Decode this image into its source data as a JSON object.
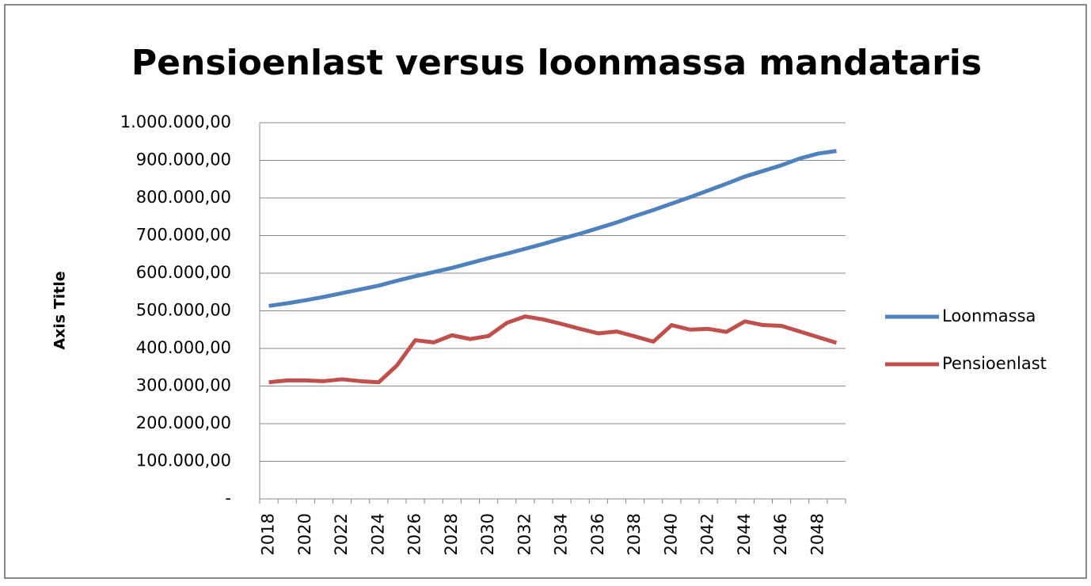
{
  "chart_data": {
    "type": "line",
    "title": "Pensioenlast  versus loonmassa mandataris",
    "y_label": "Axis Title",
    "categories": [
      "2018",
      null,
      "2020",
      null,
      "2022",
      null,
      "2024",
      null,
      "2026",
      null,
      "2028",
      null,
      "2030",
      null,
      "2032",
      null,
      "2034",
      null,
      "2036",
      null,
      "2038",
      null,
      "2040",
      null,
      "2042",
      null,
      "2044",
      null,
      "2046",
      null,
      "2048",
      null
    ],
    "series": [
      {
        "name": "Loonmassa",
        "color": "#4f81bd",
        "values": [
          513000,
          520000,
          528000,
          537000,
          547000,
          557000,
          567000,
          580000,
          592000,
          603000,
          614000,
          627000,
          640000,
          652000,
          665000,
          678000,
          692000,
          705000,
          720000,
          735000,
          752000,
          768000,
          785000,
          802000,
          820000,
          838000,
          857000,
          872000,
          887000,
          905000,
          918000,
          925000
        ]
      },
      {
        "name": "Pensioenlast",
        "color": "#c0504d",
        "values": [
          310000,
          315000,
          315000,
          313000,
          318000,
          313000,
          310000,
          355000,
          422000,
          416000,
          435000,
          425000,
          433000,
          468000,
          485000,
          477000,
          465000,
          452000,
          440000,
          445000,
          432000,
          418000,
          462000,
          450000,
          452000,
          444000,
          472000,
          462000,
          460000,
          445000,
          430000,
          415000
        ]
      }
    ],
    "ylim": [
      0,
      1000000
    ],
    "yticks": [
      {
        "value": 0,
        "label": "-"
      },
      {
        "value": 100000,
        "label": "100.000,00"
      },
      {
        "value": 200000,
        "label": "200.000,00"
      },
      {
        "value": 300000,
        "label": "300.000,00"
      },
      {
        "value": 400000,
        "label": "400.000,00"
      },
      {
        "value": 500000,
        "label": "500.000,00"
      },
      {
        "value": 600000,
        "label": "600.000,00"
      },
      {
        "value": 700000,
        "label": "700.000,00"
      },
      {
        "value": 800000,
        "label": "800.000,00"
      },
      {
        "value": 900000,
        "label": "900.000,00"
      },
      {
        "value": 1000000,
        "label": "1.000.000,00"
      }
    ],
    "grid": true,
    "legend": "right"
  }
}
